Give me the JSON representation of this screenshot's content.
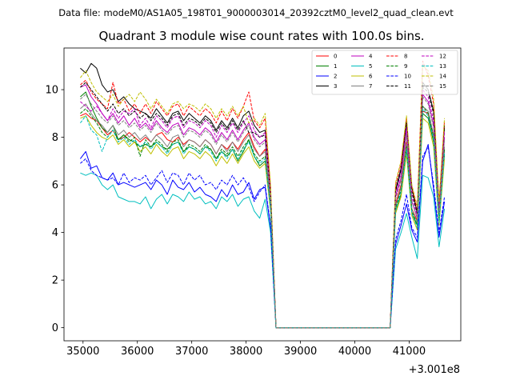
{
  "suptitle": "Data file: modeM0/AS1A05_198T01_9000003014_20392cztM0_level2_quad_clean.evt",
  "chart_data": {
    "type": "line",
    "title": "Quadrant 3 module wise count rates with 100.0s bins.",
    "xlabel": "",
    "ylabel": "",
    "x_offset_label": "+3.001e8",
    "xlim": [
      34650,
      41950
    ],
    "ylim": [
      -0.55,
      11.75
    ],
    "xticks": [
      35000,
      36000,
      37000,
      38000,
      39000,
      40000,
      41000
    ],
    "xtick_labels": [
      "35000",
      "36000",
      "37000",
      "38000",
      "39000",
      "40000",
      "41000"
    ],
    "yticks": [
      0,
      2,
      4,
      6,
      8,
      10
    ],
    "ytick_labels": [
      "0",
      "2",
      "4",
      "6",
      "8",
      "10"
    ],
    "legend_position": "top-right",
    "grid": false,
    "x": [
      34950,
      35050,
      35150,
      35250,
      35350,
      35450,
      35550,
      35650,
      35750,
      35850,
      35950,
      36050,
      36150,
      36250,
      36350,
      36450,
      36550,
      36650,
      36750,
      36850,
      36950,
      37050,
      37150,
      37250,
      37350,
      37450,
      37550,
      37650,
      37750,
      37850,
      37950,
      38050,
      38150,
      38250,
      38350,
      38450,
      38550,
      38650,
      38750,
      38850,
      38950,
      39050,
      39150,
      39250,
      39350,
      39450,
      39550,
      39650,
      39750,
      39850,
      39950,
      40050,
      40150,
      40250,
      40350,
      40450,
      40550,
      40650,
      40750,
      40850,
      40950,
      41050,
      41150,
      41250,
      41350,
      41450,
      41550,
      41650
    ],
    "series": [
      {
        "name": "0",
        "color": "#ff0000",
        "dash": "solid",
        "values": [
          8.9,
          9.0,
          8.8,
          8.7,
          8.4,
          8.1,
          8.3,
          7.9,
          8.0,
          8.2,
          8.0,
          7.8,
          8.0,
          7.8,
          8.1,
          8.2,
          7.9,
          7.8,
          8.0,
          7.7,
          7.9,
          7.8,
          7.6,
          7.9,
          7.7,
          7.3,
          7.7,
          7.5,
          7.8,
          7.5,
          7.9,
          8.2,
          7.6,
          7.2,
          7.5,
          5.2,
          0,
          0,
          0,
          0,
          0,
          0,
          0,
          0,
          0,
          0,
          0,
          0,
          0,
          0,
          0,
          0,
          0,
          0,
          0,
          0,
          0,
          0,
          5.2,
          6.0,
          7.8,
          5.0,
          4.5,
          9.1,
          9.0,
          8.0,
          4.6,
          7.5
        ]
      },
      {
        "name": "1",
        "color": "#008000",
        "dash": "solid",
        "values": [
          9.7,
          9.9,
          9.3,
          8.8,
          8.4,
          8.2,
          8.5,
          7.9,
          8.1,
          7.9,
          7.8,
          7.6,
          7.7,
          7.6,
          7.8,
          7.6,
          7.5,
          7.7,
          7.8,
          7.4,
          7.6,
          7.5,
          7.3,
          7.6,
          7.5,
          7.1,
          7.4,
          7.2,
          7.5,
          7.0,
          7.4,
          7.9,
          7.2,
          6.8,
          7.0,
          5.0,
          0,
          0,
          0,
          0,
          0,
          0,
          0,
          0,
          0,
          0,
          0,
          0,
          0,
          0,
          0,
          0,
          0,
          0,
          0,
          0,
          0,
          0,
          4.9,
          5.6,
          7.5,
          4.8,
          4.3,
          9.0,
          8.8,
          7.8,
          4.4,
          7.3
        ]
      },
      {
        "name": "2",
        "color": "#0000ff",
        "dash": "solid",
        "values": [
          7.1,
          7.4,
          6.7,
          6.8,
          6.3,
          6.2,
          6.5,
          6.0,
          6.1,
          6.0,
          5.9,
          6.0,
          6.1,
          5.8,
          6.2,
          6.0,
          5.6,
          6.2,
          5.9,
          5.8,
          6.1,
          5.7,
          5.9,
          5.6,
          5.5,
          5.3,
          5.8,
          5.5,
          6.0,
          5.6,
          5.7,
          6.1,
          5.4,
          5.8,
          5.9,
          4.2,
          0,
          0,
          0,
          0,
          0,
          0,
          0,
          0,
          0,
          0,
          0,
          0,
          0,
          0,
          0,
          0,
          0,
          0,
          0,
          0,
          0,
          0,
          3.5,
          4.3,
          5.2,
          4.1,
          3.6,
          7.0,
          7.7,
          5.8,
          3.8,
          5.3
        ]
      },
      {
        "name": "3",
        "color": "#000000",
        "dash": "solid",
        "values": [
          10.9,
          10.7,
          11.1,
          10.9,
          10.2,
          9.9,
          10.0,
          9.5,
          9.7,
          9.4,
          9.2,
          9.1,
          9.0,
          8.8,
          9.2,
          8.9,
          8.6,
          9.0,
          9.1,
          8.7,
          9.0,
          8.8,
          8.6,
          8.9,
          8.7,
          8.3,
          8.7,
          8.4,
          8.8,
          8.4,
          8.9,
          9.1,
          8.5,
          8.2,
          8.3,
          5.7,
          0,
          0,
          0,
          0,
          0,
          0,
          0,
          0,
          0,
          0,
          0,
          0,
          0,
          0,
          0,
          0,
          0,
          0,
          0,
          0,
          0,
          0,
          5.8,
          6.7,
          8.7,
          5.9,
          4.8,
          10.3,
          10.0,
          9.1,
          5.0,
          8.5
        ]
      },
      {
        "name": "4",
        "color": "#bf00bf",
        "dash": "solid",
        "values": [
          10.1,
          10.2,
          9.7,
          9.4,
          9.0,
          8.7,
          9.0,
          8.6,
          8.9,
          8.5,
          8.8,
          8.4,
          8.6,
          8.3,
          8.7,
          8.4,
          8.2,
          8.5,
          8.6,
          8.1,
          8.4,
          8.3,
          8.1,
          8.4,
          8.2,
          7.8,
          8.2,
          7.9,
          8.3,
          7.9,
          8.3,
          8.6,
          8.0,
          7.7,
          7.9,
          5.5,
          0,
          0,
          0,
          0,
          0,
          0,
          0,
          0,
          0,
          0,
          0,
          0,
          0,
          0,
          0,
          0,
          0,
          0,
          0,
          0,
          0,
          0,
          5.5,
          6.3,
          8.2,
          5.3,
          4.6,
          9.8,
          9.5,
          8.5,
          4.8,
          8.0
        ]
      },
      {
        "name": "5",
        "color": "#00bfbf",
        "dash": "solid",
        "values": [
          6.5,
          6.4,
          6.5,
          6.4,
          6.0,
          5.8,
          6.0,
          5.5,
          5.4,
          5.3,
          5.3,
          5.2,
          5.5,
          5.0,
          5.4,
          5.6,
          5.2,
          5.6,
          5.5,
          5.3,
          5.7,
          5.4,
          5.5,
          5.2,
          5.3,
          5.0,
          5.5,
          5.3,
          5.6,
          5.1,
          5.4,
          5.5,
          4.9,
          4.6,
          5.4,
          4.0,
          0,
          0,
          0,
          0,
          0,
          0,
          0,
          0,
          0,
          0,
          0,
          0,
          0,
          0,
          0,
          0,
          0,
          0,
          0,
          0,
          0,
          0,
          3.3,
          4.0,
          4.8,
          3.8,
          2.9,
          6.4,
          6.3,
          5.5,
          3.4,
          5.0
        ]
      },
      {
        "name": "6",
        "color": "#bfbf00",
        "dash": "solid",
        "values": [
          8.8,
          8.9,
          8.5,
          8.2,
          8.0,
          7.9,
          8.1,
          7.7,
          7.9,
          7.6,
          7.8,
          7.4,
          7.6,
          7.3,
          7.7,
          7.4,
          7.2,
          7.5,
          7.6,
          7.1,
          7.4,
          7.3,
          7.1,
          7.4,
          7.2,
          6.8,
          7.2,
          6.9,
          7.3,
          6.9,
          7.3,
          7.6,
          7.0,
          6.7,
          6.9,
          4.9,
          0,
          0,
          0,
          0,
          0,
          0,
          0,
          0,
          0,
          0,
          0,
          0,
          0,
          0,
          0,
          0,
          0,
          0,
          0,
          0,
          0,
          0,
          4.8,
          5.5,
          7.3,
          4.7,
          4.1,
          8.8,
          8.6,
          7.6,
          4.3,
          7.1
        ]
      },
      {
        "name": "7",
        "color": "#808080",
        "dash": "solid",
        "values": [
          9.2,
          9.4,
          9.0,
          8.7,
          8.5,
          8.2,
          8.5,
          8.1,
          8.3,
          8.0,
          8.2,
          7.9,
          8.1,
          7.8,
          8.1,
          7.9,
          7.6,
          8.0,
          8.1,
          7.6,
          7.9,
          7.8,
          7.6,
          7.9,
          7.7,
          7.3,
          7.7,
          7.4,
          7.8,
          7.4,
          7.8,
          8.1,
          7.5,
          7.2,
          7.4,
          5.1,
          0,
          0,
          0,
          0,
          0,
          0,
          0,
          0,
          0,
          0,
          0,
          0,
          0,
          0,
          0,
          0,
          0,
          0,
          0,
          0,
          0,
          0,
          5.1,
          5.9,
          7.7,
          5.0,
          4.4,
          9.3,
          9.1,
          8.1,
          4.6,
          7.6
        ]
      },
      {
        "name": "8",
        "color": "#ff0000",
        "dash": "dashed",
        "values": [
          10.2,
          10.4,
          9.9,
          9.6,
          9.4,
          9.2,
          10.3,
          9.4,
          9.6,
          9.1,
          9.4,
          9.0,
          9.4,
          9.0,
          9.5,
          9.2,
          8.9,
          9.3,
          9.4,
          8.9,
          9.3,
          9.1,
          8.9,
          9.2,
          9.0,
          8.6,
          9.1,
          8.7,
          9.2,
          8.8,
          9.3,
          9.9,
          8.7,
          8.4,
          8.8,
          5.9,
          0,
          0,
          0,
          0,
          0,
          0,
          0,
          0,
          0,
          0,
          0,
          0,
          0,
          0,
          0,
          0,
          0,
          0,
          0,
          0,
          0,
          0,
          6.0,
          6.9,
          8.8,
          5.9,
          5.0,
          11.2,
          10.6,
          9.4,
          5.2,
          8.7
        ]
      },
      {
        "name": "9",
        "color": "#008000",
        "dash": "dashed",
        "values": [
          9.0,
          9.2,
          8.9,
          8.6,
          8.2,
          8.0,
          8.3,
          7.9,
          8.1,
          7.8,
          8.0,
          7.2,
          7.9,
          7.6,
          7.9,
          7.7,
          7.4,
          7.8,
          7.9,
          7.4,
          7.7,
          7.6,
          7.4,
          7.7,
          7.5,
          7.1,
          7.5,
          7.3,
          7.6,
          7.2,
          7.6,
          7.9,
          7.3,
          7.0,
          7.2,
          5.0,
          0,
          0,
          0,
          0,
          0,
          0,
          0,
          0,
          0,
          0,
          0,
          0,
          0,
          0,
          0,
          0,
          0,
          0,
          0,
          0,
          0,
          0,
          5.0,
          5.8,
          7.6,
          4.9,
          4.3,
          9.3,
          9.0,
          8.0,
          4.5,
          7.5
        ]
      },
      {
        "name": "10",
        "color": "#0000ff",
        "dash": "dashed",
        "values": [
          6.9,
          7.1,
          6.6,
          6.4,
          6.3,
          6.2,
          6.3,
          6.0,
          6.5,
          6.1,
          6.3,
          6.2,
          6.4,
          6.0,
          6.3,
          6.6,
          6.1,
          6.5,
          6.4,
          6.0,
          6.5,
          6.2,
          6.4,
          6.0,
          6.1,
          5.8,
          6.2,
          6.0,
          6.4,
          6.0,
          6.3,
          5.9,
          5.3,
          5.7,
          6.0,
          4.3,
          0,
          0,
          0,
          0,
          0,
          0,
          0,
          0,
          0,
          0,
          0,
          0,
          0,
          0,
          0,
          0,
          0,
          0,
          0,
          0,
          0,
          0,
          3.7,
          4.5,
          5.6,
          4.2,
          3.8,
          7.2,
          7.6,
          6.0,
          4.0,
          5.5
        ]
      },
      {
        "name": "11",
        "color": "#000000",
        "dash": "dashed",
        "values": [
          10.1,
          10.3,
          10.0,
          9.7,
          9.4,
          9.1,
          9.4,
          9.0,
          9.2,
          8.9,
          9.1,
          8.8,
          9.0,
          8.7,
          9.0,
          8.8,
          8.5,
          8.9,
          9.0,
          8.5,
          8.8,
          8.7,
          8.5,
          8.8,
          8.6,
          8.2,
          8.6,
          8.3,
          8.7,
          8.3,
          8.7,
          8.2,
          8.2,
          8.0,
          8.1,
          5.6,
          0,
          0,
          0,
          0,
          0,
          0,
          0,
          0,
          0,
          0,
          0,
          0,
          0,
          0,
          0,
          0,
          0,
          0,
          0,
          0,
          0,
          0,
          5.7,
          6.6,
          8.6,
          5.7,
          4.8,
          10.1,
          9.9,
          9.0,
          5.0,
          8.4
        ]
      },
      {
        "name": "12",
        "color": "#bf00bf",
        "dash": "dashed",
        "values": [
          9.5,
          9.3,
          9.1,
          9.3,
          9.0,
          8.7,
          9.2,
          8.8,
          9.1,
          9.0,
          9.2,
          8.5,
          8.8,
          8.4,
          8.9,
          8.7,
          8.4,
          8.8,
          8.9,
          8.4,
          8.7,
          8.6,
          8.4,
          8.7,
          8.5,
          8.0,
          8.5,
          8.2,
          8.6,
          8.2,
          8.6,
          8.9,
          8.3,
          8.0,
          8.2,
          5.6,
          0,
          0,
          0,
          0,
          0,
          0,
          0,
          0,
          0,
          0,
          0,
          0,
          0,
          0,
          0,
          0,
          0,
          0,
          0,
          0,
          0,
          0,
          5.6,
          6.5,
          8.4,
          5.5,
          4.7,
          10.0,
          9.7,
          8.7,
          4.9,
          8.2
        ]
      },
      {
        "name": "13",
        "color": "#00bfbf",
        "dash": "dashed",
        "values": [
          8.6,
          8.9,
          8.3,
          8.1,
          7.4,
          8.0,
          8.3,
          7.8,
          8.0,
          7.7,
          7.9,
          7.6,
          7.8,
          7.5,
          7.8,
          7.6,
          7.3,
          7.7,
          7.8,
          7.3,
          7.6,
          7.5,
          7.3,
          7.6,
          7.4,
          7.0,
          7.4,
          7.1,
          7.5,
          7.1,
          7.5,
          7.8,
          7.2,
          6.9,
          7.1,
          5.0,
          0,
          0,
          0,
          0,
          0,
          0,
          0,
          0,
          0,
          0,
          0,
          0,
          0,
          0,
          0,
          0,
          0,
          0,
          0,
          0,
          0,
          0,
          4.9,
          5.7,
          7.5,
          4.8,
          4.2,
          9.2,
          8.9,
          7.9,
          4.4,
          7.4
        ]
      },
      {
        "name": "14",
        "color": "#bfbf00",
        "dash": "dashed",
        "values": [
          10.5,
          10.8,
          10.3,
          9.9,
          9.7,
          9.5,
          9.8,
          9.3,
          9.6,
          9.8,
          9.5,
          9.9,
          9.6,
          9.2,
          9.6,
          9.3,
          9.0,
          9.4,
          9.5,
          9.2,
          9.4,
          9.3,
          9.1,
          9.4,
          9.2,
          8.8,
          9.2,
          8.9,
          9.3,
          8.9,
          9.3,
          8.6,
          8.8,
          8.5,
          9.0,
          6.0,
          0,
          0,
          0,
          0,
          0,
          0,
          0,
          0,
          0,
          0,
          0,
          0,
          0,
          0,
          0,
          0,
          0,
          0,
          0,
          0,
          0,
          0,
          6.1,
          7.0,
          8.9,
          6.0,
          5.1,
          11.0,
          10.8,
          9.6,
          5.3,
          8.8
        ]
      },
      {
        "name": "15",
        "color": "#808080",
        "dash": "dashed",
        "values": [
          9.6,
          9.8,
          9.4,
          9.1,
          8.8,
          8.6,
          8.9,
          8.5,
          8.7,
          8.4,
          8.6,
          8.3,
          8.5,
          8.2,
          8.6,
          8.3,
          8.1,
          8.4,
          8.5,
          8.0,
          8.3,
          8.2,
          8.0,
          8.3,
          8.1,
          7.7,
          8.1,
          7.8,
          8.2,
          7.8,
          8.2,
          8.5,
          7.9,
          7.6,
          7.8,
          5.4,
          0,
          0,
          0,
          0,
          0,
          0,
          0,
          0,
          0,
          0,
          0,
          0,
          0,
          0,
          0,
          0,
          0,
          0,
          0,
          0,
          0,
          0,
          5.4,
          6.2,
          8.1,
          5.3,
          4.6,
          9.7,
          9.4,
          8.4,
          4.8,
          7.9
        ]
      }
    ]
  }
}
